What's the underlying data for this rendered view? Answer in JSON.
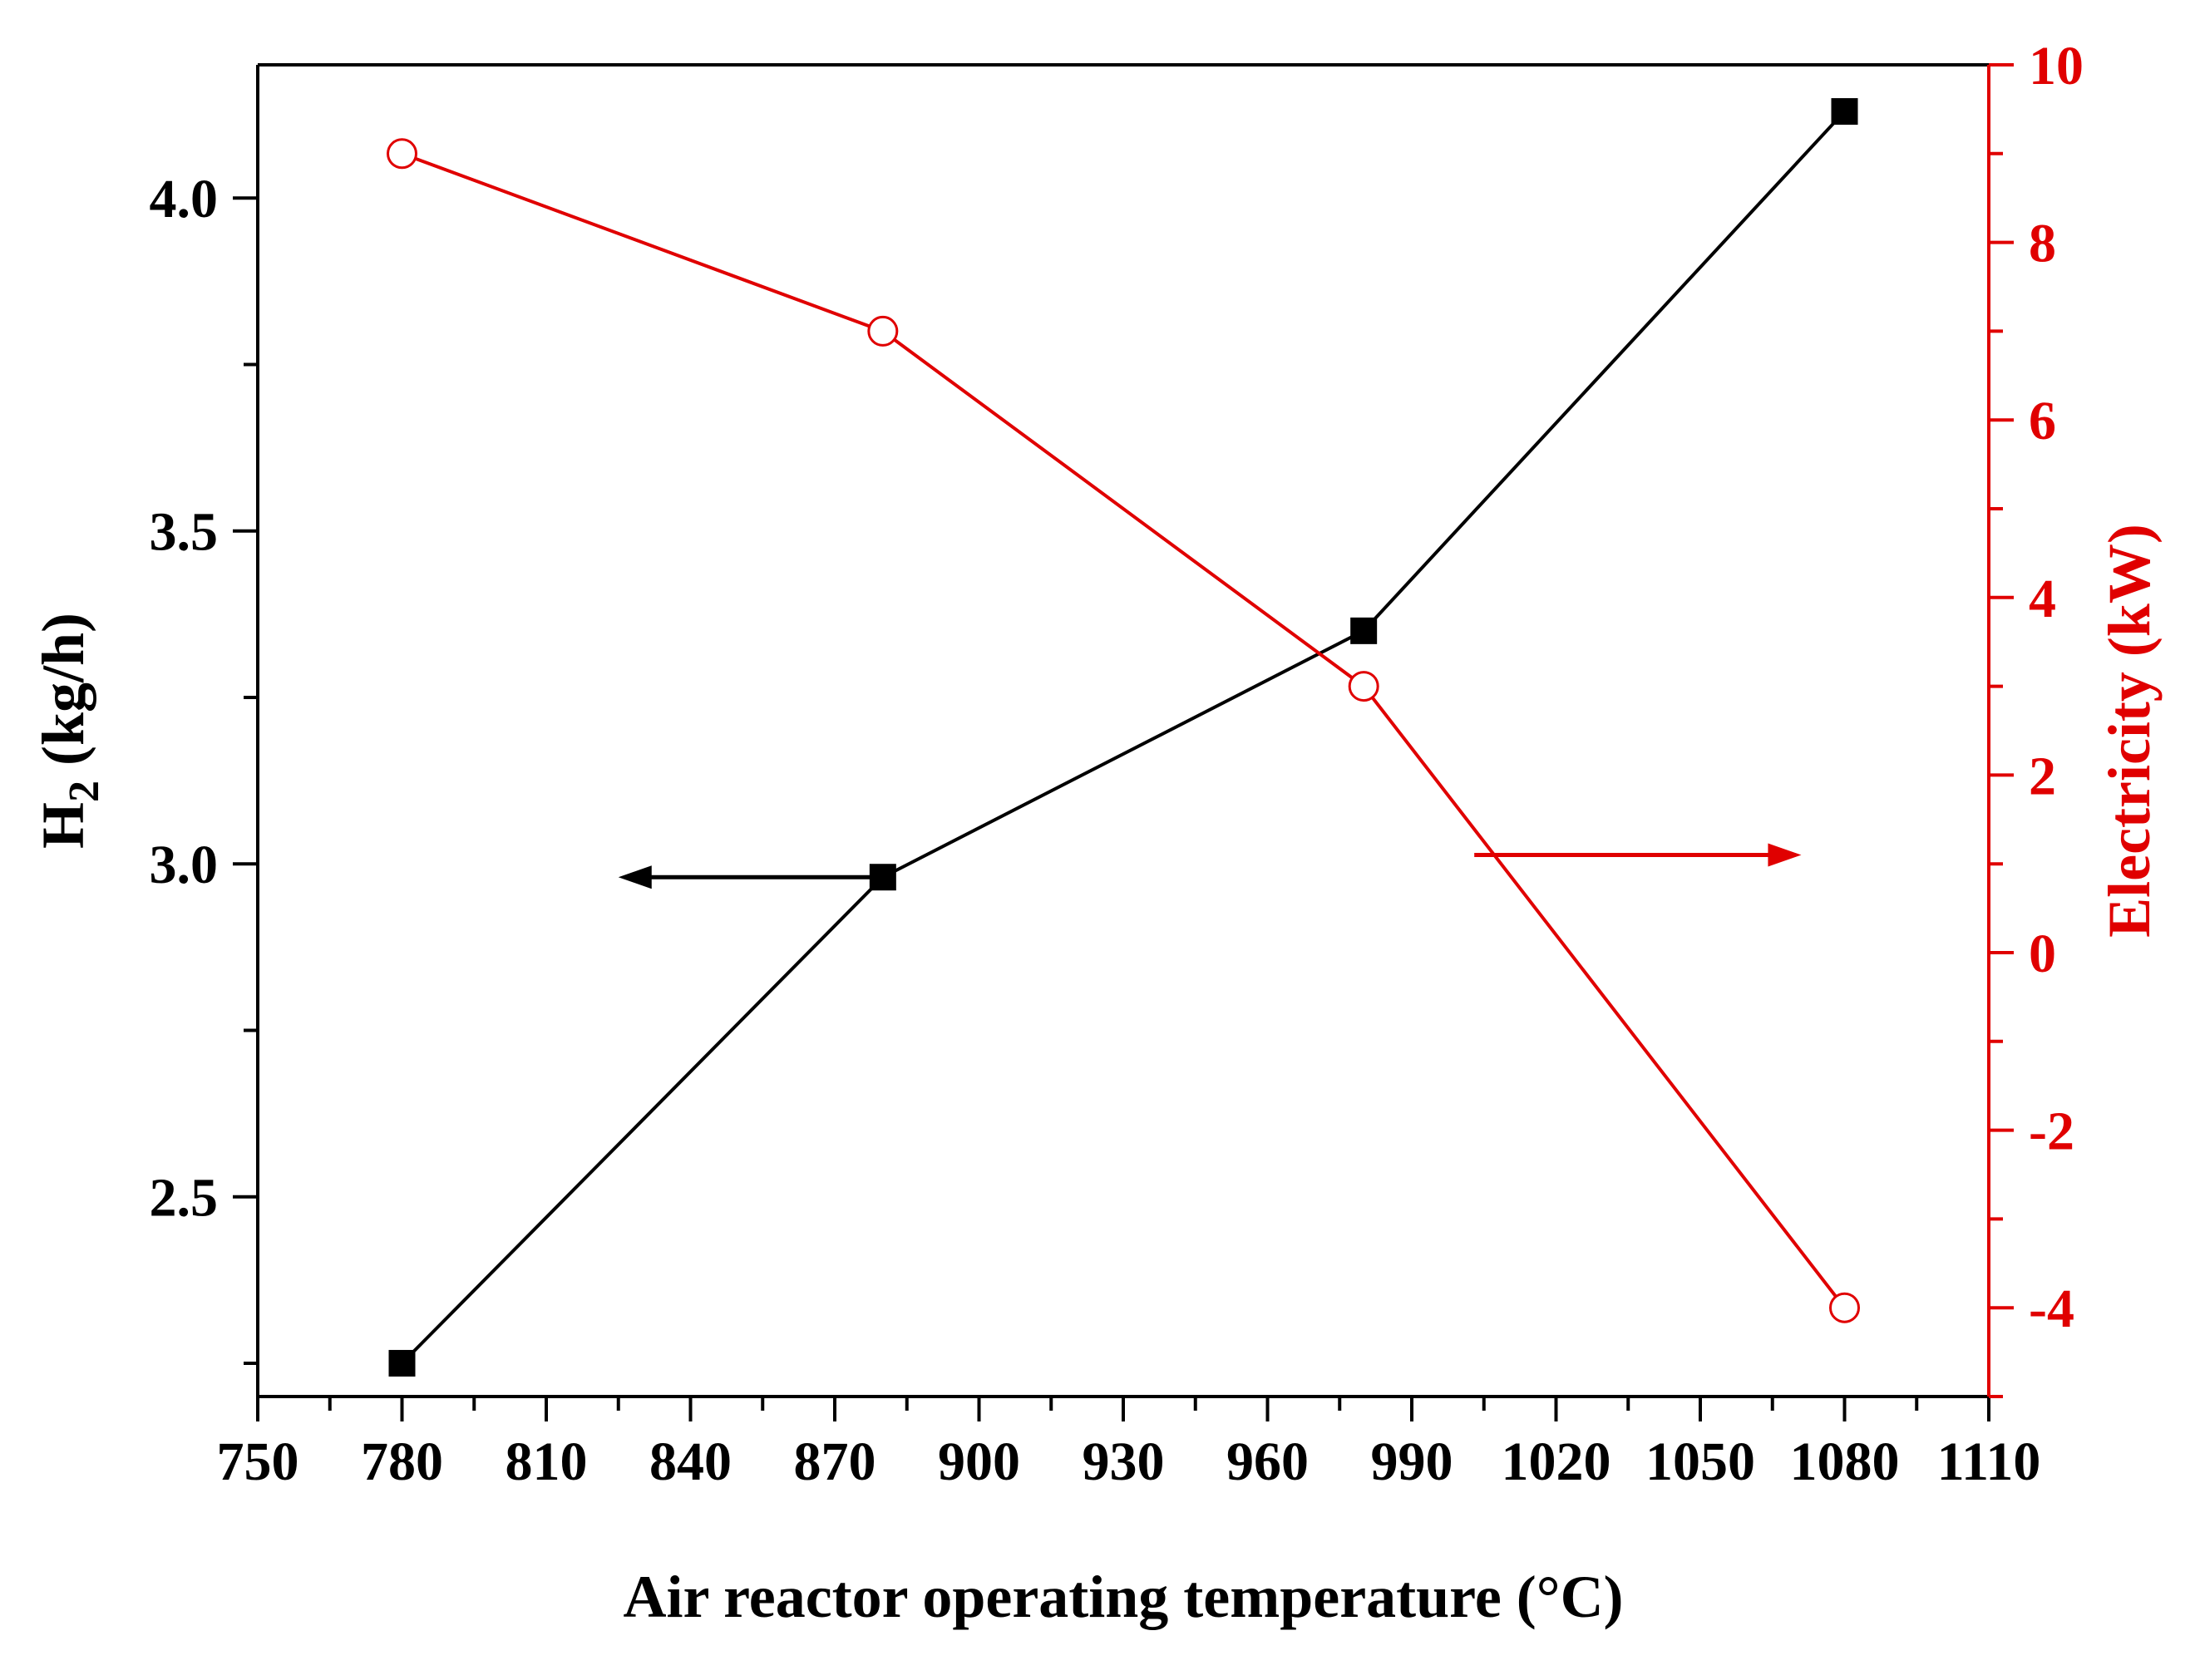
{
  "chart_data": {
    "type": "line",
    "xlabel": "Air reactor operating temperature (°C)",
    "ylabel_left": {
      "main": "H",
      "sub": "2",
      "rest": " (kg/h)"
    },
    "ylabel_right": "Electricity (kW)",
    "xlim": [
      750,
      1110
    ],
    "x_ticks": [
      "750",
      "780",
      "810",
      "840",
      "870",
      "900",
      "930",
      "960",
      "990",
      "1020",
      "1050",
      "1080",
      "1110"
    ],
    "ylim_left": [
      2.2,
      4.2
    ],
    "y_left_ticks": [
      "2.5",
      "3.0",
      "3.5",
      "4.0"
    ],
    "ylim_right": [
      -5,
      10
    ],
    "y_right_ticks": [
      "-4",
      "-2",
      "0",
      "2",
      "4",
      "6",
      "8",
      "10"
    ],
    "grid": false,
    "series": [
      {
        "axis": "left",
        "color": "#000000",
        "marker": "filled-square",
        "x": [
          780,
          880,
          980,
          1080
        ],
        "values": [
          2.25,
          2.98,
          3.35,
          4.13
        ]
      },
      {
        "axis": "right",
        "color": "#e00000",
        "marker": "open-circle",
        "x": [
          780,
          880,
          980,
          1080
        ],
        "values": [
          9.0,
          7.0,
          3.0,
          -4.0
        ]
      }
    ],
    "annotations": [
      {
        "type": "arrow",
        "direction": "left",
        "color": "#000000",
        "points_to": "left axis"
      },
      {
        "type": "arrow",
        "direction": "right",
        "color": "#e00000",
        "points_to": "right axis"
      }
    ]
  }
}
